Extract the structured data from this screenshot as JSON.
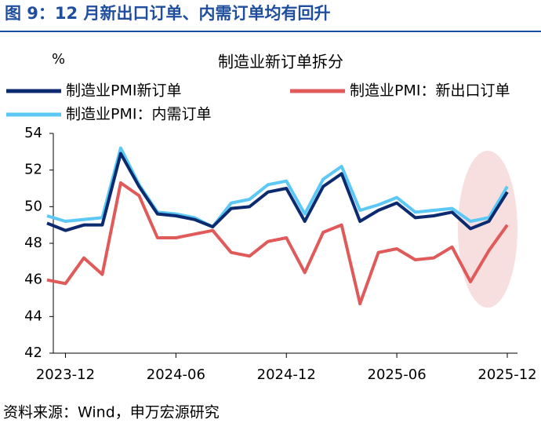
{
  "header": {
    "title": "图 9：12 月新出口订单、内需订单均有回升"
  },
  "chart_data": {
    "type": "line",
    "title": "制造业新订单拆分",
    "y_label": "%",
    "categories": [
      null,
      "2023-12",
      null,
      null,
      null,
      null,
      null,
      "2024-06",
      null,
      null,
      null,
      null,
      null,
      "2024-12",
      null,
      null,
      null,
      null,
      null,
      "2025-06",
      null,
      null,
      null,
      null,
      null,
      "2025-12"
    ],
    "series": [
      {
        "name": "制造业PMI新订单",
        "color": "#0b2a6f",
        "values": [
          49.1,
          48.7,
          49.0,
          49.0,
          52.9,
          51.1,
          49.6,
          49.5,
          49.3,
          48.9,
          49.9,
          50.0,
          50.8,
          51.0,
          49.2,
          51.1,
          51.8,
          49.2,
          49.8,
          50.2,
          49.4,
          49.5,
          49.7,
          48.8,
          49.2,
          50.8
        ]
      },
      {
        "name": "制造业PMI：新出口订单",
        "color": "#e05a5a",
        "values": [
          46.0,
          45.8,
          47.2,
          46.3,
          51.3,
          50.6,
          48.3,
          48.3,
          48.5,
          48.7,
          47.5,
          47.3,
          48.1,
          48.3,
          46.4,
          48.6,
          49.0,
          44.7,
          47.5,
          47.7,
          47.1,
          47.2,
          47.8,
          45.9,
          47.6,
          49.0
        ]
      },
      {
        "name": "制造业PMI：内需订单",
        "color": "#5bc8f5",
        "values": [
          49.5,
          49.2,
          49.3,
          49.4,
          53.2,
          51.2,
          49.7,
          49.6,
          49.4,
          48.9,
          50.2,
          50.4,
          51.2,
          51.4,
          49.6,
          51.5,
          52.2,
          49.8,
          50.1,
          50.5,
          49.7,
          49.8,
          49.9,
          49.2,
          49.4,
          51.1
        ]
      }
    ],
    "ylim": [
      42,
      54
    ],
    "yticks": [
      42,
      44,
      46,
      48,
      50,
      52,
      54
    ]
  },
  "source": "资料来源：Wind，申万宏源研究"
}
